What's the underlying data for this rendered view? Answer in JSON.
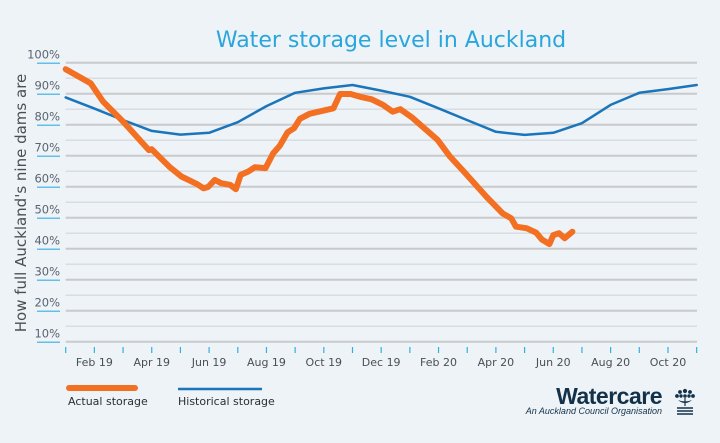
{
  "chart_data": {
    "type": "line",
    "title": "Water storage level in Auckland",
    "xlabel": "",
    "ylabel": "How full Auckland's nine dams are",
    "ylim": [
      10,
      100
    ],
    "xlim": [
      "2019-01-01",
      "2020-11-01"
    ],
    "y_ticks": [
      "100%",
      "90%",
      "80%",
      "70%",
      "60%",
      "50%",
      "40%",
      "30%",
      "20%",
      "10%"
    ],
    "x_ticks": [
      "Feb 19",
      "Apr 19",
      "Jun 19",
      "Aug 19",
      "Oct 19",
      "Dec 19",
      "Feb 20",
      "Apr 20",
      "Jun 20",
      "Aug 20",
      "Oct 20"
    ],
    "grid": true,
    "legend_position": "bottom-left",
    "series": [
      {
        "name": "Actual storage",
        "color": "#f36f21",
        "points": [
          [
            "2019-01-01",
            97.9
          ],
          [
            "2019-01-27",
            93.4
          ],
          [
            "2019-02-10",
            87.5
          ],
          [
            "2019-03-01",
            81.0
          ],
          [
            "2019-03-28",
            71.8
          ],
          [
            "2019-04-01",
            72.1
          ],
          [
            "2019-04-20",
            66.3
          ],
          [
            "2019-05-02",
            63.3
          ],
          [
            "2019-05-18",
            60.9
          ],
          [
            "2019-05-25",
            59.5
          ],
          [
            "2019-05-30",
            59.9
          ],
          [
            "2019-06-07",
            62.2
          ],
          [
            "2019-06-14",
            61.1
          ],
          [
            "2019-06-23",
            60.6
          ],
          [
            "2019-06-29",
            59.2
          ],
          [
            "2019-07-04",
            63.8
          ],
          [
            "2019-07-12",
            64.9
          ],
          [
            "2019-07-19",
            66.3
          ],
          [
            "2019-07-30",
            66.0
          ],
          [
            "2019-08-08",
            70.8
          ],
          [
            "2019-08-15",
            73.2
          ],
          [
            "2019-08-23",
            77.5
          ],
          [
            "2019-08-30",
            78.9
          ],
          [
            "2019-09-06",
            81.9
          ],
          [
            "2019-09-16",
            83.5
          ],
          [
            "2019-10-11",
            85.3
          ],
          [
            "2019-10-18",
            89.9
          ],
          [
            "2019-10-29",
            89.9
          ],
          [
            "2019-11-09",
            89.0
          ],
          [
            "2019-11-21",
            88.2
          ],
          [
            "2019-12-03",
            86.4
          ],
          [
            "2019-12-13",
            84.2
          ],
          [
            "2019-12-21",
            85.0
          ],
          [
            "2020-01-03",
            82.4
          ],
          [
            "2020-01-30",
            75.1
          ],
          [
            "2020-02-13",
            69.7
          ],
          [
            "2020-02-26",
            65.4
          ],
          [
            "2020-03-21",
            56.8
          ],
          [
            "2020-04-08",
            51.4
          ],
          [
            "2020-04-17",
            49.8
          ],
          [
            "2020-04-22",
            47.1
          ],
          [
            "2020-05-03",
            46.6
          ],
          [
            "2020-05-13",
            45.2
          ],
          [
            "2020-05-19",
            43.0
          ],
          [
            "2020-05-27",
            41.5
          ],
          [
            "2020-06-01",
            44.4
          ],
          [
            "2020-06-07",
            45.0
          ],
          [
            "2020-06-13",
            43.4
          ],
          [
            "2020-06-21",
            45.5
          ]
        ]
      },
      {
        "name": "Historical storage",
        "color": "#1b75bb",
        "points": [
          [
            "2019-01-01",
            88.8
          ],
          [
            "2019-02-01",
            85.2
          ],
          [
            "2019-03-01",
            81.5
          ],
          [
            "2019-04-01",
            78.0
          ],
          [
            "2019-05-01",
            76.8
          ],
          [
            "2019-06-01",
            77.4
          ],
          [
            "2019-07-01",
            80.8
          ],
          [
            "2019-08-01",
            86.0
          ],
          [
            "2019-09-01",
            90.3
          ],
          [
            "2019-10-01",
            91.7
          ],
          [
            "2019-11-01",
            92.8
          ],
          [
            "2019-12-01",
            91.0
          ],
          [
            "2020-01-01",
            89.0
          ],
          [
            "2020-02-01",
            85.3
          ],
          [
            "2020-03-01",
            81.5
          ],
          [
            "2020-04-01",
            77.7
          ],
          [
            "2020-05-01",
            76.7
          ],
          [
            "2020-06-01",
            77.4
          ],
          [
            "2020-07-01",
            80.5
          ],
          [
            "2020-08-01",
            86.4
          ],
          [
            "2020-09-01",
            90.3
          ],
          [
            "2020-10-01",
            91.5
          ],
          [
            "2020-11-01",
            92.8
          ]
        ]
      }
    ]
  },
  "logo": {
    "name": "Watercare",
    "tagline": "An Auckland Council Organisation"
  }
}
